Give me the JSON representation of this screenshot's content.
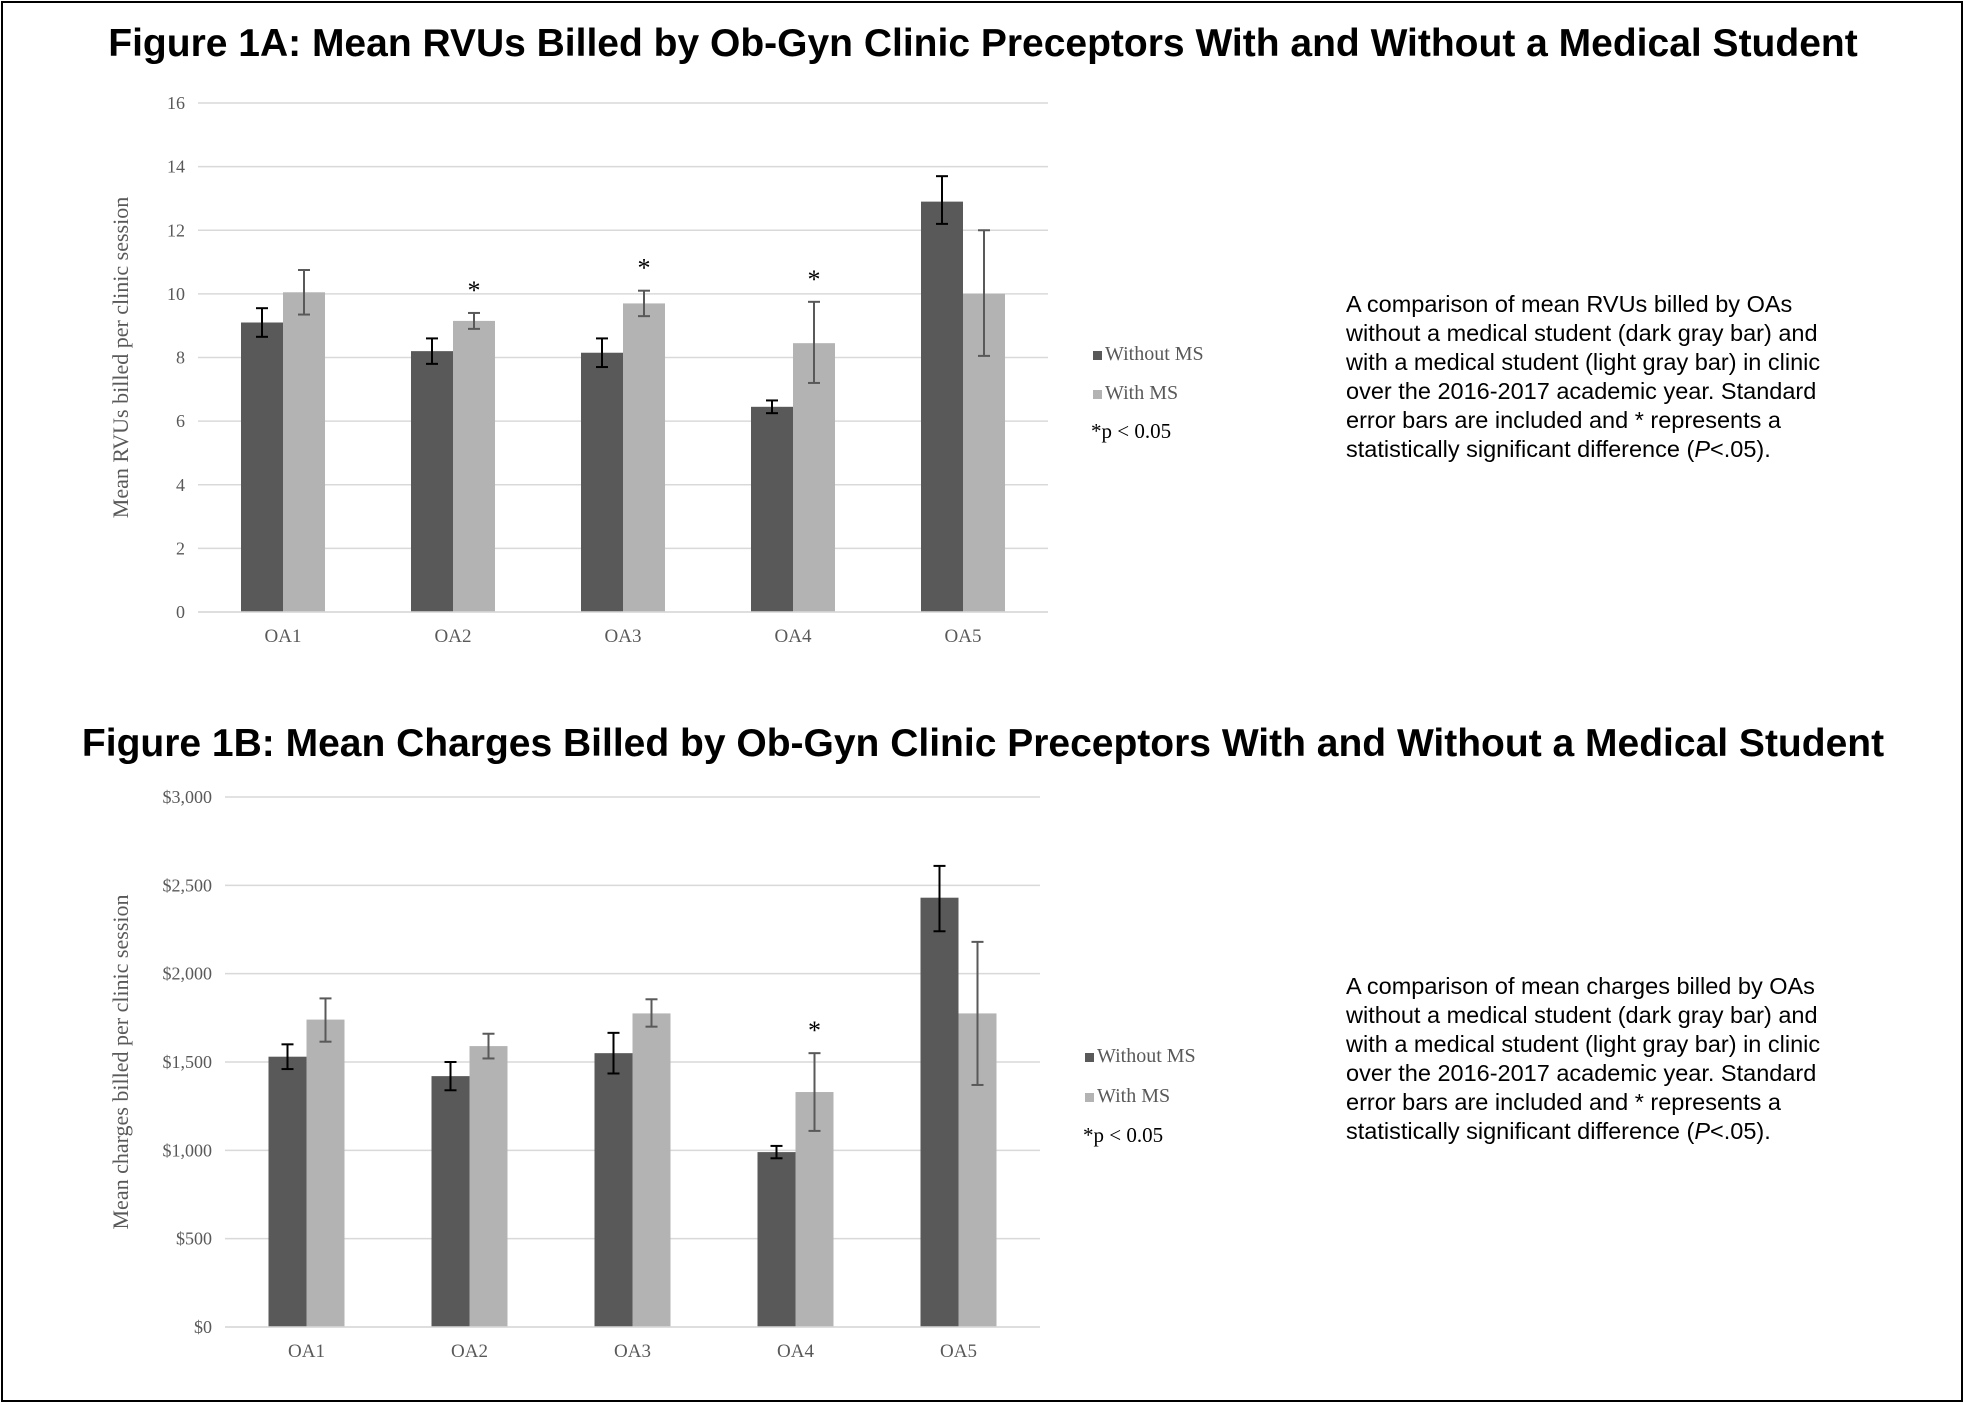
{
  "chart_data": [
    {
      "type": "bar",
      "title": "Figure 1A: Mean RVUs Billed by Ob-Gyn Clinic Preceptors With and Without a Medical Student",
      "ylabel": "Mean RVUs billed per clinic session",
      "xlabel": "",
      "categories": [
        "OA1",
        "OA2",
        "OA3",
        "OA4",
        "OA5"
      ],
      "ylim": [
        0,
        16
      ],
      "yticks": [
        0,
        2,
        4,
        6,
        8,
        10,
        12,
        14,
        16
      ],
      "ytick_labels": [
        "0",
        "2",
        "4",
        "6",
        "8",
        "10",
        "12",
        "14",
        "16"
      ],
      "series": [
        {
          "name": "Without MS",
          "color": "#595959",
          "values": [
            9.1,
            8.2,
            8.15,
            6.45,
            12.9
          ],
          "err_low": [
            8.65,
            7.8,
            7.7,
            6.25,
            12.2
          ],
          "err_high": [
            9.55,
            8.6,
            8.6,
            6.65,
            13.7
          ]
        },
        {
          "name": "With MS",
          "color": "#b3b3b3",
          "values": [
            10.05,
            9.15,
            9.7,
            8.45,
            10.0
          ],
          "err_low": [
            9.35,
            8.9,
            9.3,
            7.2,
            8.05
          ],
          "err_high": [
            10.75,
            9.4,
            10.1,
            9.75,
            12.0
          ]
        }
      ],
      "significant": [
        "",
        "*",
        "*",
        "*",
        ""
      ],
      "legend_note": "*p < 0.05",
      "grid": true,
      "legend_position": "right",
      "caption": [
        "A comparison of mean RVUs billed by OAs",
        "without a medical student (dark gray bar) and",
        "with a medical student (light gray bar) in clinic",
        "over the 2016-2017 academic year. Standard",
        "error bars are included and * represents a",
        "statistically significant difference (P<.05)."
      ]
    },
    {
      "type": "bar",
      "title": "Figure 1B: Mean Charges Billed by Ob-Gyn Clinic Preceptors With and Without a Medical Student",
      "ylabel": "Mean charges billed per clinic session",
      "xlabel": "",
      "categories": [
        "OA1",
        "OA2",
        "OA3",
        "OA4",
        "OA5"
      ],
      "ylim": [
        0,
        3000
      ],
      "yticks": [
        0,
        500,
        1000,
        1500,
        2000,
        2500,
        3000
      ],
      "ytick_labels": [
        "$0",
        "$500",
        "$1,000",
        "$1,500",
        "$2,000",
        "$2,500",
        "$3,000"
      ],
      "series": [
        {
          "name": "Without MS",
          "color": "#595959",
          "values": [
            1530,
            1420,
            1550,
            990,
            2430
          ],
          "err_low": [
            1460,
            1340,
            1435,
            955,
            2240
          ],
          "err_high": [
            1600,
            1500,
            1665,
            1025,
            2610
          ]
        },
        {
          "name": "With MS",
          "color": "#b3b3b3",
          "values": [
            1740,
            1590,
            1775,
            1330,
            1775
          ],
          "err_low": [
            1615,
            1520,
            1700,
            1110,
            1370
          ],
          "err_high": [
            1860,
            1660,
            1855,
            1550,
            2180
          ]
        }
      ],
      "significant": [
        "",
        "",
        "",
        "*",
        ""
      ],
      "legend_note": "*p < 0.05",
      "grid": true,
      "legend_position": "right",
      "caption": [
        "A comparison of mean charges billed by OAs",
        "without a medical student (dark gray bar) and",
        "with a medical student (light gray bar) in clinic",
        "over the 2016-2017 academic year. Standard",
        "error bars are included and * represents a",
        "statistically significant difference (P<.05)."
      ]
    }
  ]
}
